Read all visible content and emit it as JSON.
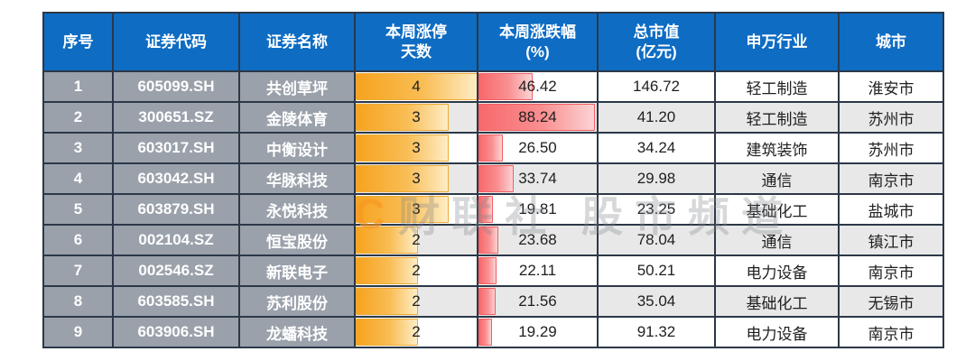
{
  "watermark": {
    "logo": "C",
    "text": "财联社 股市频道"
  },
  "colors": {
    "header_blue": "#0e6cc3",
    "grid_line": "#2c3848",
    "index_cell_gray": "#9aa1ab",
    "zebra_row": "#e8e8e8",
    "limit_up_bar_orange": "#f6a31e",
    "change_bar_red": "#f8696b"
  },
  "chart_data": {
    "type": "table",
    "title": "",
    "columns": [
      {
        "key": "index",
        "label": "序号"
      },
      {
        "key": "code",
        "label": "证券代码"
      },
      {
        "key": "name",
        "label": "证券名称"
      },
      {
        "key": "limit_up_days",
        "label": "本周涨停\n天数"
      },
      {
        "key": "weekly_change",
        "label": "本周涨跌幅\n(%)"
      },
      {
        "key": "market_cap",
        "label": "总市值\n(亿元)"
      },
      {
        "key": "industry",
        "label": "申万行业"
      },
      {
        "key": "city",
        "label": "城市"
      }
    ],
    "rows": [
      {
        "index": "1",
        "code": "605099.SH",
        "name": "共创草坪",
        "limit_up_days": 4,
        "weekly_change": "46.42",
        "market_cap": "146.72",
        "industry": "轻工制造",
        "city": "淮安市"
      },
      {
        "index": "2",
        "code": "300651.SZ",
        "name": "金陵体育",
        "limit_up_days": 3,
        "weekly_change": "88.24",
        "market_cap": "41.20",
        "industry": "轻工制造",
        "city": "苏州市"
      },
      {
        "index": "3",
        "code": "603017.SH",
        "name": "中衡设计",
        "limit_up_days": 3,
        "weekly_change": "26.50",
        "market_cap": "34.24",
        "industry": "建筑装饰",
        "city": "苏州市"
      },
      {
        "index": "4",
        "code": "603042.SH",
        "name": "华脉科技",
        "limit_up_days": 3,
        "weekly_change": "33.74",
        "market_cap": "29.98",
        "industry": "通信",
        "city": "南京市"
      },
      {
        "index": "5",
        "code": "603879.SH",
        "name": "永悦科技",
        "limit_up_days": 3,
        "weekly_change": "19.81",
        "market_cap": "23.25",
        "industry": "基础化工",
        "city": "盐城市"
      },
      {
        "index": "6",
        "code": "002104.SZ",
        "name": "恒宝股份",
        "limit_up_days": 2,
        "weekly_change": "23.68",
        "market_cap": "78.04",
        "industry": "通信",
        "city": "镇江市"
      },
      {
        "index": "7",
        "code": "002546.SZ",
        "name": "新联电子",
        "limit_up_days": 2,
        "weekly_change": "22.11",
        "market_cap": "50.21",
        "industry": "电力设备",
        "city": "南京市"
      },
      {
        "index": "8",
        "code": "603585.SH",
        "name": "苏利股份",
        "limit_up_days": 2,
        "weekly_change": "21.56",
        "market_cap": "35.04",
        "industry": "基础化工",
        "city": "无锡市"
      },
      {
        "index": "9",
        "code": "603906.SH",
        "name": "龙蟠科技",
        "limit_up_days": 2,
        "weekly_change": "19.29",
        "market_cap": "91.32",
        "industry": "电力设备",
        "city": "南京市"
      }
    ],
    "data_bars": {
      "limit_up_days": {
        "style": "orange-gradient",
        "scale": "value / 4"
      },
      "weekly_change": {
        "style": "red-gradient",
        "scale": "10% + (value - min) / (max - min) * 87%"
      }
    },
    "layout": {
      "grid": "on",
      "zebra_striping": true,
      "header_position": "top"
    }
  }
}
